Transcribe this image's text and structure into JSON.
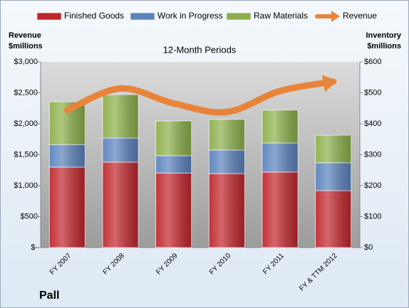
{
  "chart_data": {
    "type": "stacked-bar-line",
    "title": "Pall",
    "subtitle": "12-Month Periods",
    "y_label": [
      "Revenue",
      "$millions"
    ],
    "y2_label": [
      "Inventory",
      "$millions"
    ],
    "categories": [
      "FY 2007",
      "FY 2008",
      "FY 2009",
      "FY 2010",
      "FY 2011",
      "FY & TTM 2012"
    ],
    "series": [
      {
        "name": "Finished Goods",
        "color": "#c0272d",
        "axis": "y2",
        "values": [
          260,
          276,
          241,
          239,
          244,
          184
        ]
      },
      {
        "name": "Work in Progress",
        "color": "#5b82bd",
        "axis": "y2",
        "values": [
          73,
          78,
          56,
          76,
          94,
          90
        ]
      },
      {
        "name": "Raw Materials",
        "color": "#8caf4a",
        "axis": "y2",
        "values": [
          138,
          140,
          112,
          99,
          106,
          89
        ]
      },
      {
        "name": "Revenue",
        "color": "#e8843a",
        "axis": "y",
        "values": [
          2220,
          2570,
          2330,
          2190,
          2530,
          2680
        ]
      }
    ],
    "ylim": [
      0,
      3000
    ],
    "yticks": [
      {
        "value": 0,
        "label": "$-"
      },
      {
        "value": 500,
        "label": "$500"
      },
      {
        "value": 1000,
        "label": "$1,000"
      },
      {
        "value": 1500,
        "label": "$1,500"
      },
      {
        "value": 2000,
        "label": "$2,000"
      },
      {
        "value": 2500,
        "label": "$2,500"
      },
      {
        "value": 3000,
        "label": "$3,000"
      }
    ],
    "y2lim": [
      0,
      600
    ],
    "y2ticks": [
      {
        "value": 0,
        "label": "$0"
      },
      {
        "value": 100,
        "label": "$100"
      },
      {
        "value": 200,
        "label": "$200"
      },
      {
        "value": 300,
        "label": "$300"
      },
      {
        "value": 400,
        "label": "$400"
      },
      {
        "value": 500,
        "label": "$500"
      },
      {
        "value": 600,
        "label": "$600"
      }
    ]
  }
}
